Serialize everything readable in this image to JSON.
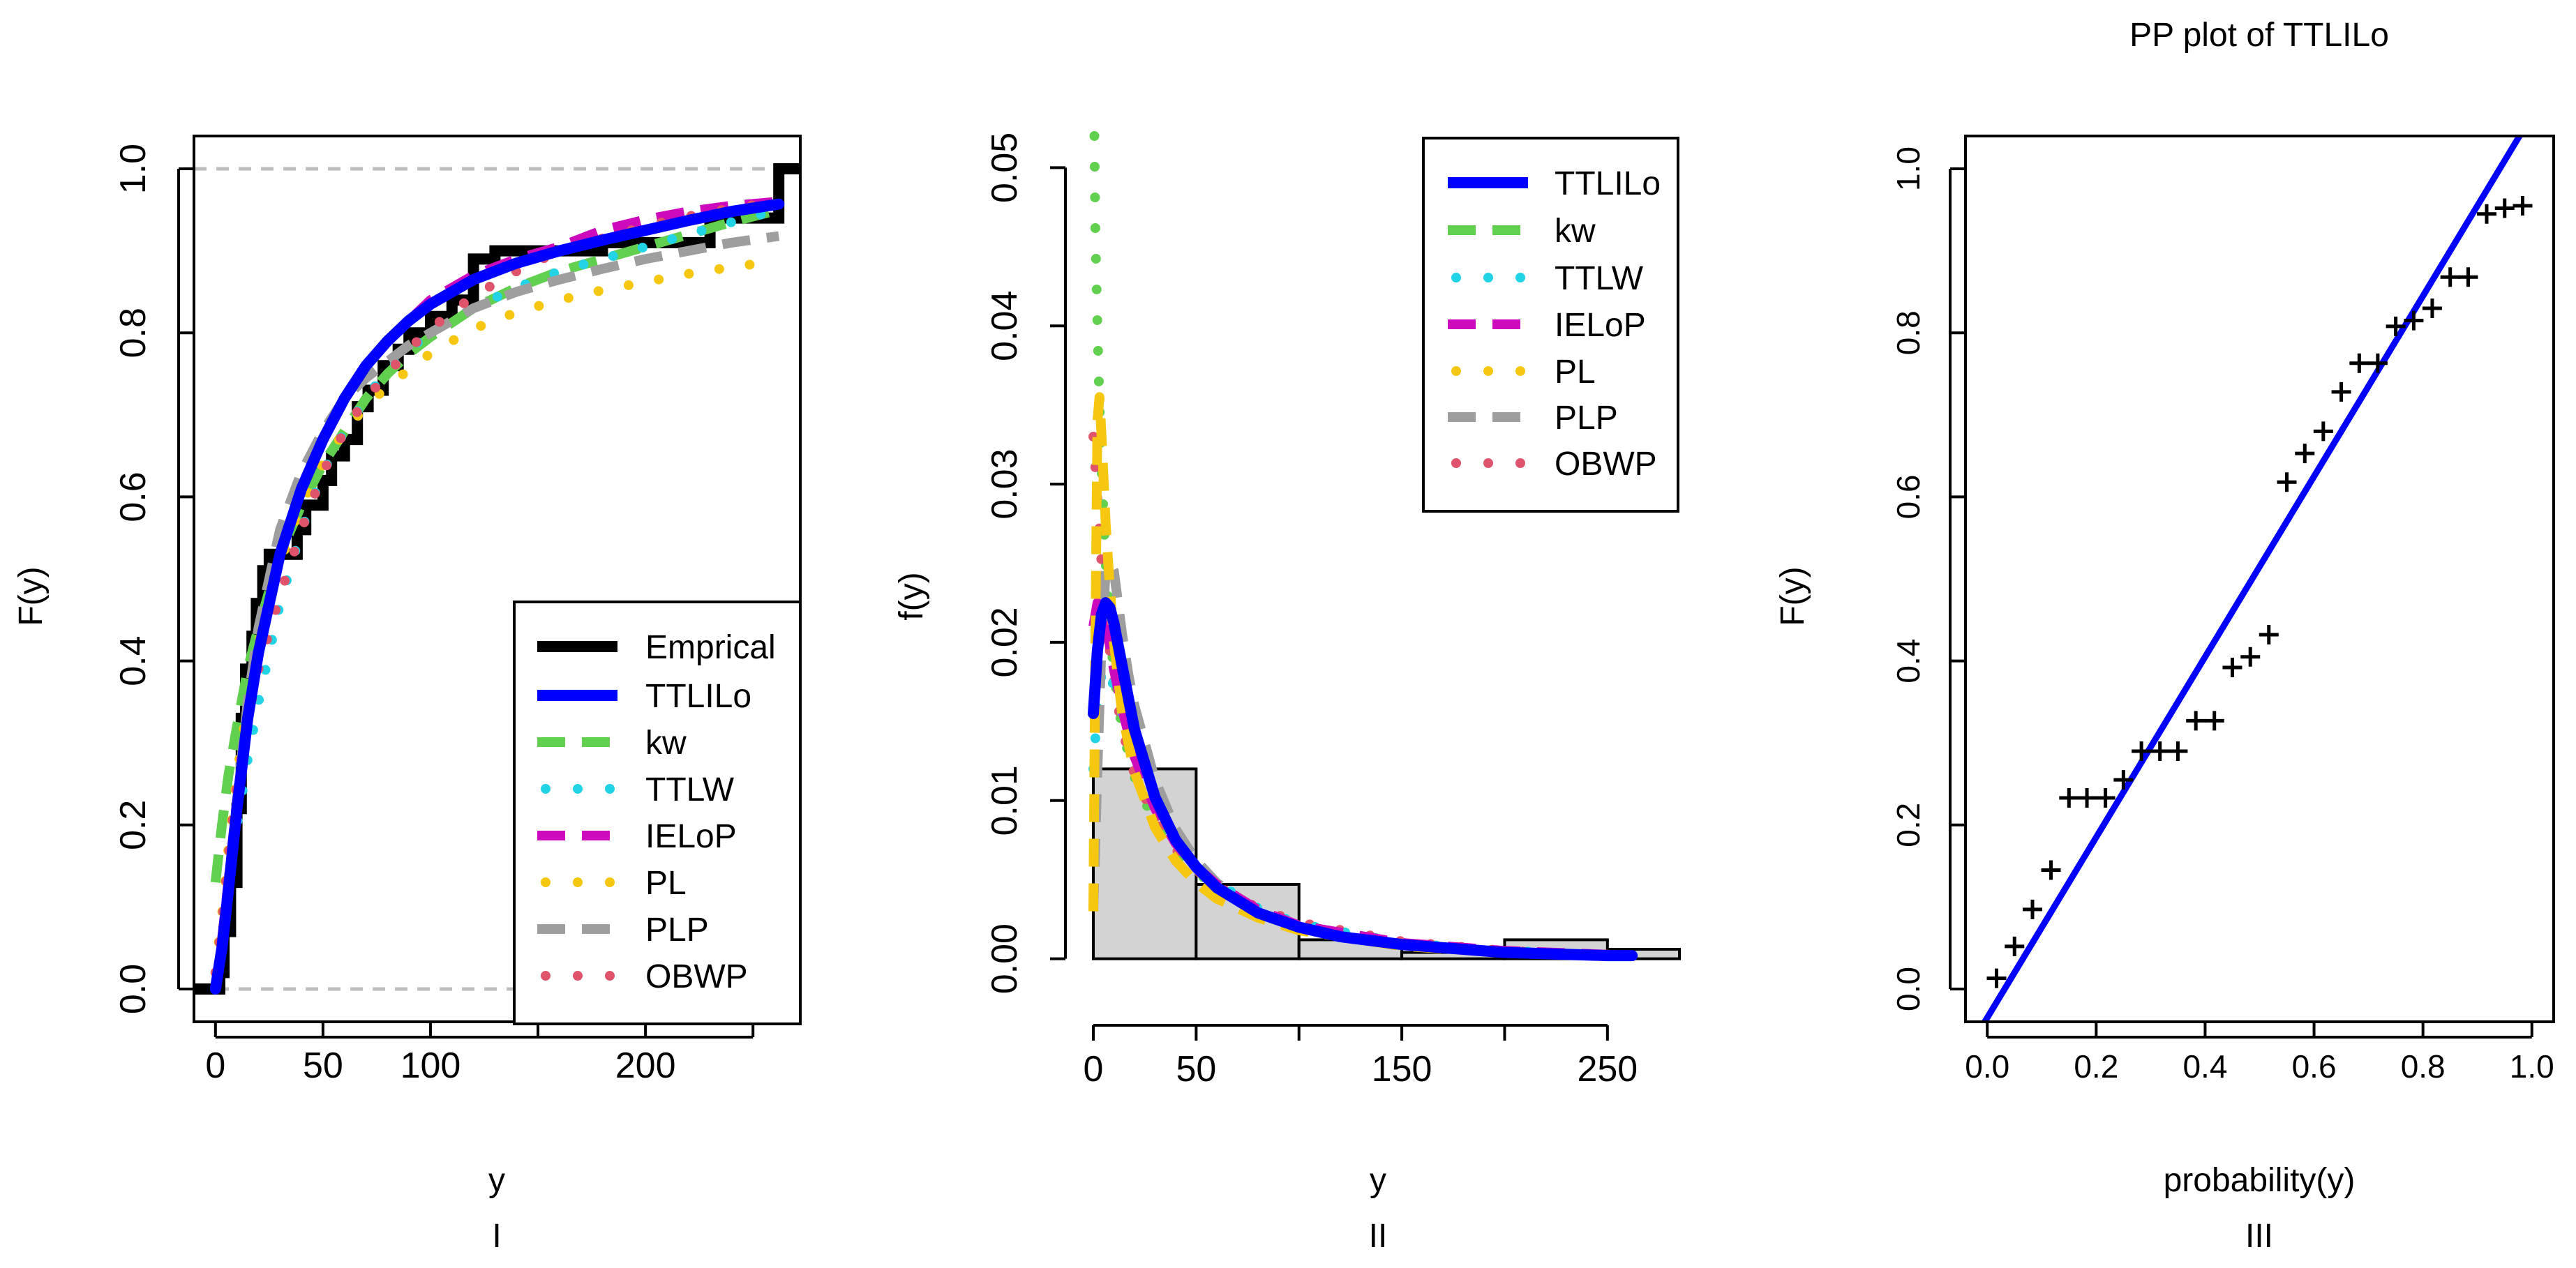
{
  "colors": {
    "emprical": "#000000",
    "ttlilo": "#0000ff",
    "kw": "#61d04f",
    "ttlw": "#22d3e6",
    "ieLoP": "#cd0bbc",
    "pl": "#f5c710",
    "plp": "#9e9e9e",
    "obwp": "#df536b",
    "hist_fill": "#d3d3d3",
    "ref_line": "#bebebe"
  },
  "chart_data": [
    {
      "type": "line",
      "panel": "I",
      "title": "",
      "xlabel": "y",
      "ylabel": "F(y)",
      "sublabel": "I",
      "xlim": [
        -10,
        272
      ],
      "ylim": [
        -0.04,
        1.04
      ],
      "xticks": [
        0,
        50,
        100,
        150,
        200,
        250
      ],
      "xtick_labels": [
        "0",
        "50",
        "100",
        "",
        "200",
        ""
      ],
      "yticks": [
        0.0,
        0.2,
        0.4,
        0.6,
        0.8,
        1.0
      ],
      "ytick_labels": [
        "0.0",
        "0.2",
        "0.4",
        "0.6",
        "0.8",
        "1.0"
      ],
      "hlines": [
        0,
        1
      ],
      "legend_position": "bottom-right",
      "legend": [
        "Emprical",
        "TTLILo",
        "kw",
        "TTLW",
        "IELoP",
        "PL",
        "PLP",
        "OBWP"
      ],
      "ecdf_x": [
        0,
        2,
        4,
        7,
        10,
        12,
        14,
        17,
        19,
        22,
        25,
        28,
        31,
        38,
        42,
        50,
        54,
        60,
        66,
        71,
        78,
        85,
        90,
        100,
        110,
        120,
        130,
        150,
        180,
        230,
        262,
        272
      ],
      "ecdf_y": [
        0.0,
        0.02,
        0.07,
        0.13,
        0.22,
        0.33,
        0.39,
        0.43,
        0.47,
        0.51,
        0.53,
        0.53,
        0.53,
        0.56,
        0.59,
        0.62,
        0.65,
        0.67,
        0.71,
        0.73,
        0.76,
        0.78,
        0.8,
        0.82,
        0.84,
        0.89,
        0.9,
        0.9,
        0.91,
        0.94,
        1.0,
        1.0
      ],
      "series": [
        {
          "name": "TTLILo",
          "color_key": "ttlilo",
          "style": "solid",
          "x": [
            0,
            3,
            6,
            10,
            15,
            20,
            30,
            40,
            50,
            60,
            70,
            80,
            90,
            100,
            120,
            140,
            160,
            180,
            200,
            220,
            240,
            262
          ],
          "y": [
            0.0,
            0.05,
            0.12,
            0.22,
            0.33,
            0.41,
            0.53,
            0.61,
            0.67,
            0.72,
            0.76,
            0.79,
            0.815,
            0.835,
            0.865,
            0.885,
            0.9,
            0.913,
            0.925,
            0.937,
            0.948,
            0.957
          ]
        },
        {
          "name": "kw",
          "color_key": "kw",
          "style": "dash",
          "x": [
            0,
            3,
            6,
            10,
            15,
            20,
            30,
            40,
            50,
            60,
            70,
            80,
            90,
            100,
            120,
            140,
            160,
            180,
            200,
            220,
            240,
            262
          ],
          "y": [
            0.13,
            0.2,
            0.26,
            0.32,
            0.39,
            0.44,
            0.53,
            0.59,
            0.64,
            0.68,
            0.72,
            0.75,
            0.775,
            0.795,
            0.83,
            0.855,
            0.875,
            0.89,
            0.905,
            0.92,
            0.935,
            0.95
          ]
        },
        {
          "name": "TTLW",
          "color_key": "ttlw",
          "style": "dot",
          "x": [
            0,
            3,
            6,
            10,
            15,
            20,
            30,
            40,
            50,
            60,
            70,
            80,
            90,
            100,
            120,
            140,
            160,
            180,
            200,
            220,
            240,
            262
          ],
          "y": [
            0.02,
            0.07,
            0.13,
            0.2,
            0.28,
            0.35,
            0.47,
            0.56,
            0.63,
            0.68,
            0.72,
            0.755,
            0.78,
            0.8,
            0.83,
            0.855,
            0.875,
            0.89,
            0.905,
            0.92,
            0.935,
            0.95
          ]
        },
        {
          "name": "IELoP",
          "color_key": "ieLoP",
          "style": "dash",
          "x": [
            0,
            3,
            6,
            10,
            15,
            20,
            30,
            40,
            50,
            60,
            70,
            80,
            90,
            100,
            120,
            140,
            160,
            180,
            200,
            220,
            240,
            262
          ],
          "y": [
            0.0,
            0.06,
            0.13,
            0.23,
            0.33,
            0.41,
            0.53,
            0.61,
            0.67,
            0.72,
            0.76,
            0.79,
            0.815,
            0.84,
            0.87,
            0.89,
            0.905,
            0.925,
            0.938,
            0.948,
            0.955,
            0.96
          ]
        },
        {
          "name": "PL",
          "color_key": "pl",
          "style": "dot",
          "x": [
            0,
            3,
            6,
            10,
            15,
            20,
            30,
            40,
            50,
            60,
            70,
            80,
            90,
            100,
            120,
            140,
            160,
            180,
            200,
            220,
            240,
            262
          ],
          "y": [
            0.02,
            0.09,
            0.17,
            0.26,
            0.35,
            0.42,
            0.52,
            0.59,
            0.64,
            0.68,
            0.71,
            0.735,
            0.755,
            0.775,
            0.805,
            0.825,
            0.84,
            0.852,
            0.862,
            0.872,
            0.88,
            0.888
          ]
        },
        {
          "name": "PLP",
          "color_key": "plp",
          "style": "dash",
          "x": [
            0,
            3,
            6,
            10,
            15,
            20,
            30,
            40,
            50,
            60,
            70,
            80,
            90,
            100,
            120,
            140,
            160,
            180,
            200,
            220,
            240,
            262
          ],
          "y": [
            0.0,
            0.05,
            0.12,
            0.23,
            0.35,
            0.44,
            0.56,
            0.63,
            0.68,
            0.72,
            0.745,
            0.765,
            0.785,
            0.8,
            0.83,
            0.85,
            0.865,
            0.878,
            0.89,
            0.9,
            0.91,
            0.918
          ]
        },
        {
          "name": "OBWP",
          "color_key": "obwp",
          "style": "dot",
          "x": [
            0,
            3,
            6,
            10,
            15,
            20,
            30,
            40,
            50,
            60,
            70,
            80,
            90,
            100,
            120,
            140,
            160,
            180,
            200,
            220,
            240,
            262
          ],
          "y": [
            0.02,
            0.08,
            0.16,
            0.25,
            0.33,
            0.39,
            0.48,
            0.56,
            0.63,
            0.68,
            0.72,
            0.75,
            0.78,
            0.805,
            0.845,
            0.875,
            0.9,
            0.915,
            0.93,
            0.942,
            0.952,
            0.96
          ]
        }
      ]
    },
    {
      "type": "line",
      "panel": "II",
      "title": "",
      "xlabel": "y",
      "ylabel": "f(y)",
      "sublabel": "II",
      "xlim": [
        0,
        285
      ],
      "ylim": [
        -0.002,
        0.052
      ],
      "xticks": [
        0,
        50,
        150,
        250
      ],
      "xtick_labels": [
        "0",
        "50",
        "150",
        "250"
      ],
      "xtick_marks": [
        0,
        50,
        100,
        150,
        200,
        250
      ],
      "yticks": [
        0.0,
        0.01,
        0.02,
        0.03,
        0.04,
        0.05
      ],
      "ytick_labels": [
        "0.00",
        "0.01",
        "0.02",
        "0.03",
        "0.04",
        "0.05"
      ],
      "legend_position": "top-right",
      "legend": [
        "TTLILo",
        "kw",
        "TTLW",
        "IELoP",
        "PL",
        "PLP",
        "OBWP"
      ],
      "histogram": {
        "breaks": [
          0,
          50,
          100,
          150,
          200,
          250,
          300
        ],
        "density": [
          0.012,
          0.0047,
          0.0012,
          0.0004,
          0.0012,
          0.0006
        ]
      },
      "series": [
        {
          "name": "TTLILo",
          "color_key": "ttlilo",
          "style": "solid",
          "x": [
            0,
            2,
            4,
            6,
            8,
            10,
            14,
            20,
            30,
            40,
            50,
            60,
            80,
            100,
            120,
            150,
            200,
            250,
            262
          ],
          "y": [
            0.0155,
            0.0195,
            0.0218,
            0.0225,
            0.0222,
            0.0212,
            0.0185,
            0.0145,
            0.0102,
            0.0075,
            0.0058,
            0.0045,
            0.0029,
            0.002,
            0.0014,
            0.0009,
            0.0004,
            0.0002,
            0.0002
          ]
        },
        {
          "name": "kw",
          "color_key": "kw",
          "style": "dot",
          "x": [
            0.5,
            1,
            2,
            3,
            4,
            5,
            6,
            8,
            10,
            14,
            20,
            30,
            40,
            50,
            60,
            80,
            100,
            150,
            200,
            262
          ],
          "y": [
            0.052,
            0.046,
            0.04,
            0.035,
            0.031,
            0.028,
            0.025,
            0.021,
            0.018,
            0.0145,
            0.0115,
            0.0085,
            0.0067,
            0.0055,
            0.0045,
            0.003,
            0.0021,
            0.001,
            0.0005,
            0.0002
          ]
        },
        {
          "name": "TTLW",
          "color_key": "ttlw",
          "style": "dot",
          "x": [
            0,
            2,
            4,
            6,
            8,
            10,
            14,
            20,
            30,
            40,
            50,
            60,
            80,
            100,
            150,
            200,
            262
          ],
          "y": [
            0.012,
            0.016,
            0.018,
            0.0185,
            0.018,
            0.0172,
            0.0155,
            0.013,
            0.0098,
            0.0076,
            0.006,
            0.0048,
            0.0032,
            0.0022,
            0.001,
            0.0005,
            0.0002
          ]
        },
        {
          "name": "IELoP",
          "color_key": "ieLoP",
          "style": "dash",
          "x": [
            0,
            2,
            4,
            6,
            8,
            10,
            14,
            20,
            30,
            40,
            50,
            60,
            80,
            100,
            150,
            200,
            262
          ],
          "y": [
            0.021,
            0.0225,
            0.0222,
            0.0212,
            0.0198,
            0.0183,
            0.0158,
            0.0128,
            0.0095,
            0.0073,
            0.0058,
            0.0047,
            0.0031,
            0.0021,
            0.001,
            0.0005,
            0.0002
          ]
        },
        {
          "name": "PL",
          "color_key": "pl",
          "style": "dash",
          "x": [
            0,
            1,
            2,
            3,
            4,
            6,
            8,
            10,
            14,
            20,
            30,
            40,
            50,
            60,
            80,
            100,
            150,
            200,
            262
          ],
          "y": [
            0.003,
            0.02,
            0.034,
            0.0355,
            0.033,
            0.0275,
            0.0235,
            0.02,
            0.0155,
            0.0118,
            0.0083,
            0.0062,
            0.0048,
            0.0038,
            0.0026,
            0.0018,
            0.0008,
            0.0004,
            0.0002
          ]
        },
        {
          "name": "PLP",
          "color_key": "plp",
          "style": "dash",
          "x": [
            0,
            2,
            4,
            6,
            8,
            10,
            12,
            14,
            17,
            20,
            30,
            40,
            50,
            60,
            80,
            100,
            150,
            200,
            262
          ],
          "y": [
            0.003,
            0.012,
            0.02,
            0.0245,
            0.025,
            0.0245,
            0.0225,
            0.0205,
            0.018,
            0.016,
            0.0113,
            0.0082,
            0.0062,
            0.0048,
            0.003,
            0.002,
            0.0009,
            0.0004,
            0.0002
          ]
        },
        {
          "name": "OBWP",
          "color_key": "obwp",
          "style": "dot",
          "x": [
            0,
            1,
            2,
            3,
            4,
            6,
            8,
            10,
            14,
            20,
            30,
            40,
            50,
            60,
            80,
            100,
            150,
            200,
            262
          ],
          "y": [
            0.033,
            0.031,
            0.029,
            0.027,
            0.025,
            0.022,
            0.0195,
            0.0175,
            0.0145,
            0.0117,
            0.0088,
            0.0069,
            0.0056,
            0.0046,
            0.0032,
            0.0023,
            0.0011,
            0.0005,
            0.0002
          ]
        }
      ]
    },
    {
      "type": "scatter",
      "panel": "III",
      "title": "PP plot of TTLILo",
      "xlabel": "probability(y)",
      "ylabel": "F(y)",
      "sublabel": "III",
      "xlim": [
        -0.04,
        1.04
      ],
      "ylim": [
        -0.04,
        1.04
      ],
      "xticks": [
        0.0,
        0.2,
        0.4,
        0.6,
        0.8,
        1.0
      ],
      "xtick_labels": [
        "0.0",
        "0.2",
        "0.4",
        "0.6",
        "0.8",
        "1.0"
      ],
      "yticks": [
        0.0,
        0.2,
        0.4,
        0.6,
        0.8,
        1.0
      ],
      "ytick_labels": [
        "0.0",
        "0.2",
        "0.4",
        "0.6",
        "0.8",
        "1.0"
      ],
      "fit_line": {
        "color_key": "ttlilo",
        "intercept": -0.035,
        "slope": 1.1
      },
      "points": {
        "x": [
          0.017,
          0.05,
          0.083,
          0.117,
          0.15,
          0.183,
          0.217,
          0.25,
          0.283,
          0.317,
          0.35,
          0.383,
          0.417,
          0.45,
          0.483,
          0.517,
          0.55,
          0.583,
          0.617,
          0.65,
          0.683,
          0.717,
          0.75,
          0.783,
          0.817,
          0.85,
          0.883,
          0.917,
          0.95,
          0.983
        ],
        "y": [
          0.013,
          0.052,
          0.097,
          0.145,
          0.233,
          0.233,
          0.233,
          0.255,
          0.29,
          0.29,
          0.29,
          0.327,
          0.327,
          0.392,
          0.405,
          0.432,
          0.618,
          0.653,
          0.68,
          0.728,
          0.763,
          0.763,
          0.808,
          0.815,
          0.83,
          0.868,
          0.868,
          0.945,
          0.952,
          0.955
        ]
      }
    }
  ]
}
